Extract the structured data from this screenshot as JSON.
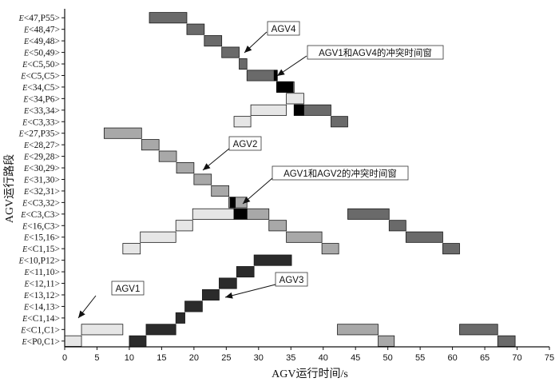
{
  "chart_data": {
    "type": "gantt",
    "title": "",
    "xlabel": "AGV运行时间/s",
    "ylabel": "AGV运行路段",
    "xlim": [
      0,
      75
    ],
    "xticks": [
      0,
      5,
      10,
      15,
      20,
      25,
      30,
      35,
      40,
      45,
      50,
      55,
      60,
      65,
      70,
      75
    ],
    "row_prefix": "E",
    "rows": [
      "<P0,C1>",
      "<C1,C1>",
      "<C1,14>",
      "<14,13>",
      "<13,12>",
      "<12,11>",
      "<11,10>",
      "<10,P12>",
      "<C1,15>",
      "<15,16>",
      "<16,C3>",
      "<C3,C3>",
      "<C3,32>",
      "<32,31>",
      "<31,30>",
      "<30,29>",
      "<29,28>",
      "<28,27>",
      "<27,P35>",
      "<C3,33>",
      "<33,34>",
      "<34,P6>",
      "<34,C5>",
      "<C5,C5>",
      "<C5,50>",
      "<50,49>",
      "<49,48>",
      "<48,47>",
      "<47,P55>"
    ],
    "series_colors": {
      "AGV1": "#e6e6e6",
      "AGV2": "#a8a8a8",
      "AGV3": "#2b2b2b",
      "AGV4": "#6a6a6a",
      "conflict": "#000000"
    },
    "series": [
      {
        "name": "AGV1",
        "tasks": [
          {
            "row": 0,
            "start": 0,
            "end": 2.6
          },
          {
            "row": 1,
            "start": 2.6,
            "end": 9.0
          },
          {
            "row": 8,
            "start": 9.0,
            "end": 11.7
          },
          {
            "row": 9,
            "start": 11.7,
            "end": 17.2
          },
          {
            "row": 10,
            "start": 17.2,
            "end": 19.8
          },
          {
            "row": 11,
            "start": 19.8,
            "end": 26.2
          },
          {
            "row": 19,
            "start": 26.2,
            "end": 28.8
          },
          {
            "row": 20,
            "start": 28.8,
            "end": 34.3
          },
          {
            "row": 21,
            "start": 34.3,
            "end": 37.0
          }
        ]
      },
      {
        "name": "AGV2",
        "tasks": [
          {
            "row": 18,
            "start": 6.1,
            "end": 11.9
          },
          {
            "row": 17,
            "start": 11.9,
            "end": 14.6
          },
          {
            "row": 16,
            "start": 14.6,
            "end": 17.3
          },
          {
            "row": 15,
            "start": 17.3,
            "end": 20.0
          },
          {
            "row": 14,
            "start": 20.0,
            "end": 22.7
          },
          {
            "row": 13,
            "start": 22.7,
            "end": 25.4
          },
          {
            "row": 12,
            "start": 25.4,
            "end": 28.2
          },
          {
            "row": 11,
            "start": 28.2,
            "end": 31.6
          },
          {
            "row": 10,
            "start": 31.6,
            "end": 34.3
          },
          {
            "row": 9,
            "start": 34.3,
            "end": 39.8
          },
          {
            "row": 8,
            "start": 39.8,
            "end": 42.4
          },
          {
            "row": 1,
            "start": 42.2,
            "end": 48.5
          },
          {
            "row": 0,
            "start": 48.5,
            "end": 51.0
          }
        ]
      },
      {
        "name": "AGV3",
        "tasks": [
          {
            "row": 0,
            "start": 10.0,
            "end": 12.6
          },
          {
            "row": 1,
            "start": 12.6,
            "end": 17.2
          },
          {
            "row": 2,
            "start": 17.2,
            "end": 18.6
          },
          {
            "row": 3,
            "start": 18.6,
            "end": 21.3
          },
          {
            "row": 4,
            "start": 21.3,
            "end": 23.9
          },
          {
            "row": 5,
            "start": 23.9,
            "end": 26.6
          },
          {
            "row": 6,
            "start": 26.6,
            "end": 29.3
          },
          {
            "row": 7,
            "start": 29.3,
            "end": 35.1
          }
        ]
      },
      {
        "name": "AGV4",
        "tasks": [
          {
            "row": 28,
            "start": 13.1,
            "end": 18.9
          },
          {
            "row": 27,
            "start": 18.9,
            "end": 21.6
          },
          {
            "row": 26,
            "start": 21.6,
            "end": 24.3
          },
          {
            "row": 25,
            "start": 24.3,
            "end": 27.0
          },
          {
            "row": 24,
            "start": 27.0,
            "end": 28.2
          },
          {
            "row": 23,
            "start": 28.2,
            "end": 32.8
          },
          {
            "row": 22,
            "start": 32.8,
            "end": 35.5
          },
          {
            "row": 20,
            "start": 35.5,
            "end": 41.2
          },
          {
            "row": 19,
            "start": 41.2,
            "end": 43.8
          },
          {
            "row": 11,
            "start": 43.8,
            "end": 50.2
          },
          {
            "row": 10,
            "start": 50.2,
            "end": 52.8
          },
          {
            "row": 9,
            "start": 52.8,
            "end": 58.5
          },
          {
            "row": 8,
            "start": 58.5,
            "end": 61.1
          },
          {
            "row": 1,
            "start": 61.1,
            "end": 67.0
          },
          {
            "row": 0,
            "start": 67.0,
            "end": 69.7
          }
        ]
      },
      {
        "name": "conflict",
        "tasks": [
          {
            "row": 23,
            "start": 32.4,
            "end": 32.9
          },
          {
            "row": 22,
            "start": 32.8,
            "end": 35.3
          },
          {
            "row": 20,
            "start": 35.5,
            "end": 37.0
          },
          {
            "row": 12,
            "start": 25.6,
            "end": 26.4
          },
          {
            "row": 11,
            "start": 26.2,
            "end": 28.2
          }
        ]
      }
    ],
    "annotations": [
      {
        "text": "AGV1",
        "target_series": "AGV1"
      },
      {
        "text": "AGV2",
        "target_series": "AGV2"
      },
      {
        "text": "AGV3",
        "target_series": "AGV3"
      },
      {
        "text": "AGV4",
        "target_series": "AGV4"
      },
      {
        "text": "AGV1和AGV4的冲突时间窗",
        "target_series": "conflict"
      },
      {
        "text": "AGV1和AGV2的冲突时间窗",
        "target_series": "conflict"
      }
    ]
  }
}
